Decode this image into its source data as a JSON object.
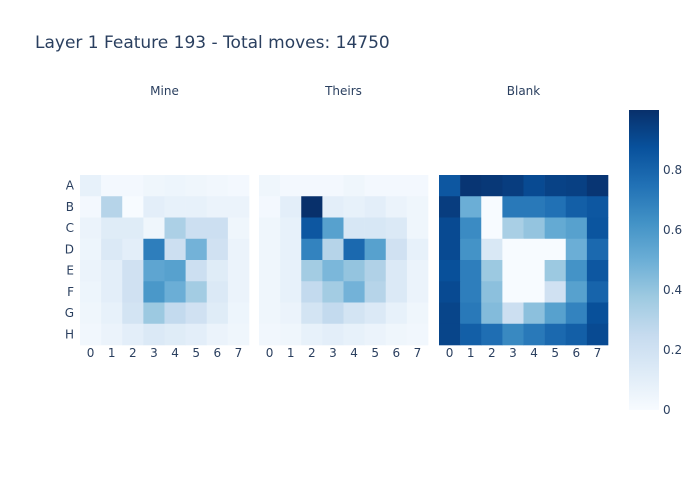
{
  "chart_data": {
    "type": "heatmap",
    "title": "Layer 1 Feature 193 - Total moves: 14750",
    "row_labels": [
      "A",
      "B",
      "C",
      "D",
      "E",
      "F",
      "G",
      "H"
    ],
    "col_labels": [
      "0",
      "1",
      "2",
      "3",
      "4",
      "5",
      "6",
      "7"
    ],
    "colorscale": "Blues",
    "zmin": 0,
    "zmax": 1.0,
    "colorbar_ticks": [
      {
        "value": 0,
        "label": "0"
      },
      {
        "value": 0.2,
        "label": "0.2"
      },
      {
        "value": 0.4,
        "label": "0.4"
      },
      {
        "value": 0.6,
        "label": "0.6"
      },
      {
        "value": 0.8,
        "label": "0.8"
      }
    ],
    "panels": [
      {
        "name": "Mine",
        "values": [
          [
            0.08,
            0.02,
            0.02,
            0.04,
            0.05,
            0.04,
            0.03,
            0.02
          ],
          [
            0.02,
            0.3,
            0.0,
            0.1,
            0.08,
            0.08,
            0.06,
            0.06
          ],
          [
            0.06,
            0.12,
            0.12,
            0.04,
            0.33,
            0.22,
            0.22,
            0.04
          ],
          [
            0.05,
            0.14,
            0.1,
            0.7,
            0.22,
            0.48,
            0.2,
            0.06
          ],
          [
            0.06,
            0.1,
            0.2,
            0.54,
            0.56,
            0.22,
            0.12,
            0.06
          ],
          [
            0.05,
            0.1,
            0.2,
            0.6,
            0.5,
            0.36,
            0.14,
            0.06
          ],
          [
            0.04,
            0.08,
            0.18,
            0.38,
            0.26,
            0.2,
            0.12,
            0.05
          ],
          [
            0.03,
            0.06,
            0.1,
            0.14,
            0.12,
            0.1,
            0.06,
            0.04
          ]
        ]
      },
      {
        "name": "Theirs",
        "values": [
          [
            0.04,
            0.02,
            0.02,
            0.02,
            0.04,
            0.02,
            0.02,
            0.02
          ],
          [
            0.02,
            0.1,
            1.0,
            0.1,
            0.08,
            0.1,
            0.06,
            0.04
          ],
          [
            0.04,
            0.08,
            0.85,
            0.56,
            0.16,
            0.16,
            0.14,
            0.04
          ],
          [
            0.04,
            0.08,
            0.68,
            0.3,
            0.78,
            0.56,
            0.2,
            0.08
          ],
          [
            0.04,
            0.08,
            0.36,
            0.46,
            0.4,
            0.32,
            0.14,
            0.06
          ],
          [
            0.04,
            0.08,
            0.26,
            0.36,
            0.48,
            0.3,
            0.14,
            0.06
          ],
          [
            0.04,
            0.06,
            0.18,
            0.26,
            0.18,
            0.14,
            0.08,
            0.04
          ],
          [
            0.03,
            0.04,
            0.08,
            0.1,
            0.08,
            0.06,
            0.04,
            0.03
          ]
        ]
      },
      {
        "name": "Blank",
        "values": [
          [
            0.85,
            0.98,
            0.97,
            0.95,
            0.9,
            0.93,
            0.94,
            0.98
          ],
          [
            0.95,
            0.5,
            0.0,
            0.72,
            0.72,
            0.75,
            0.82,
            0.85
          ],
          [
            0.9,
            0.65,
            0.0,
            0.34,
            0.4,
            0.52,
            0.56,
            0.86
          ],
          [
            0.9,
            0.62,
            0.15,
            0.0,
            0.0,
            0.0,
            0.5,
            0.78
          ],
          [
            0.88,
            0.7,
            0.38,
            0.0,
            0.0,
            0.38,
            0.62,
            0.85
          ],
          [
            0.9,
            0.7,
            0.42,
            0.0,
            0.0,
            0.2,
            0.56,
            0.8
          ],
          [
            0.92,
            0.72,
            0.44,
            0.22,
            0.42,
            0.56,
            0.68,
            0.88
          ],
          [
            0.92,
            0.82,
            0.76,
            0.66,
            0.72,
            0.78,
            0.82,
            0.9
          ]
        ]
      }
    ]
  }
}
